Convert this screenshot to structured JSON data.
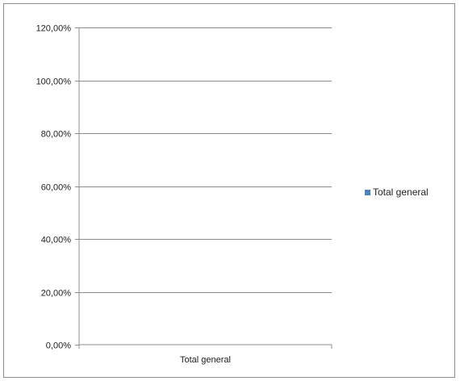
{
  "chart_data": {
    "type": "bar",
    "categories": [
      "Total general"
    ],
    "series": [
      {
        "name": "Total general",
        "values": [
          0
        ],
        "color": "#4f81bd"
      }
    ],
    "ylim": [
      0,
      1.2
    ],
    "y_ticks": [
      0,
      0.2,
      0.4,
      0.6,
      0.8,
      1.0,
      1.2
    ],
    "y_tick_labels": [
      "0,00%",
      "20,00%",
      "40,00%",
      "60,00%",
      "80,00%",
      "100,00%",
      "120,00%"
    ],
    "grid": true,
    "legend_position": "right",
    "title": "",
    "xlabel": "",
    "ylabel": ""
  }
}
